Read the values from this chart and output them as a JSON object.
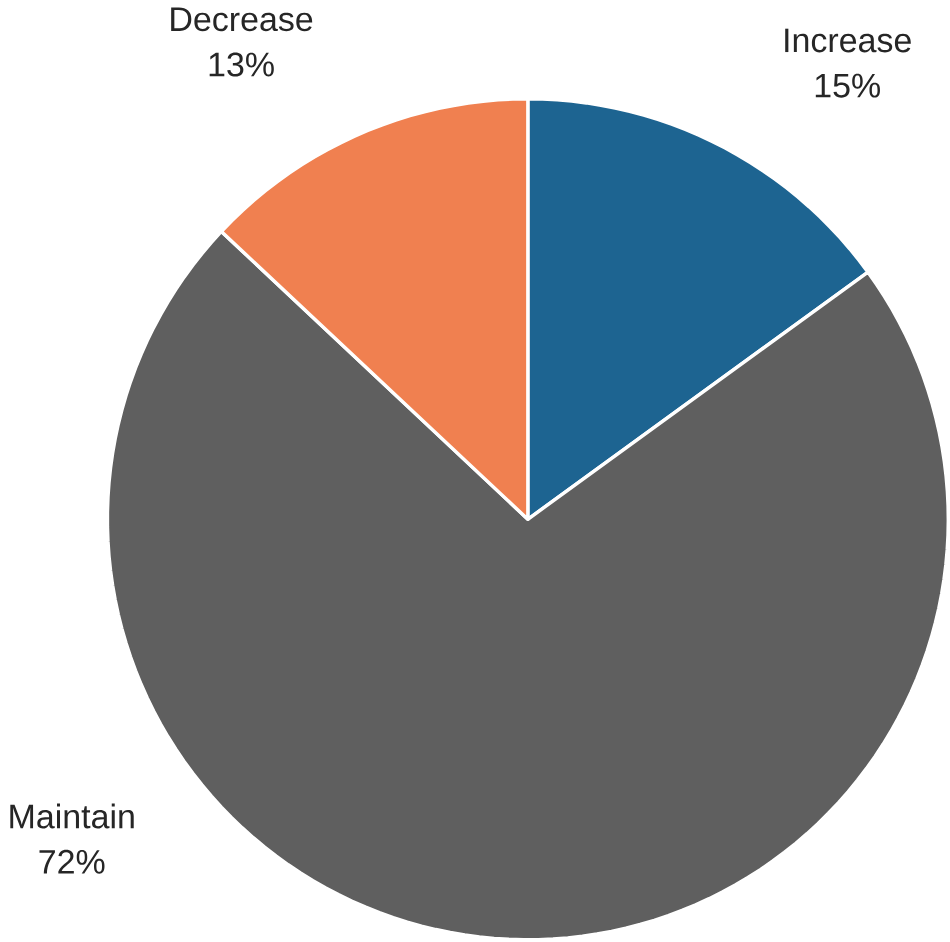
{
  "chart_data": {
    "type": "pie",
    "categories": [
      "Increase",
      "Maintain",
      "Decrease"
    ],
    "values": [
      15,
      72,
      13
    ],
    "value_labels": [
      "15%",
      "72%",
      "13%"
    ],
    "colors": [
      "#1d6491",
      "#5f5f5f",
      "#f08050"
    ]
  }
}
